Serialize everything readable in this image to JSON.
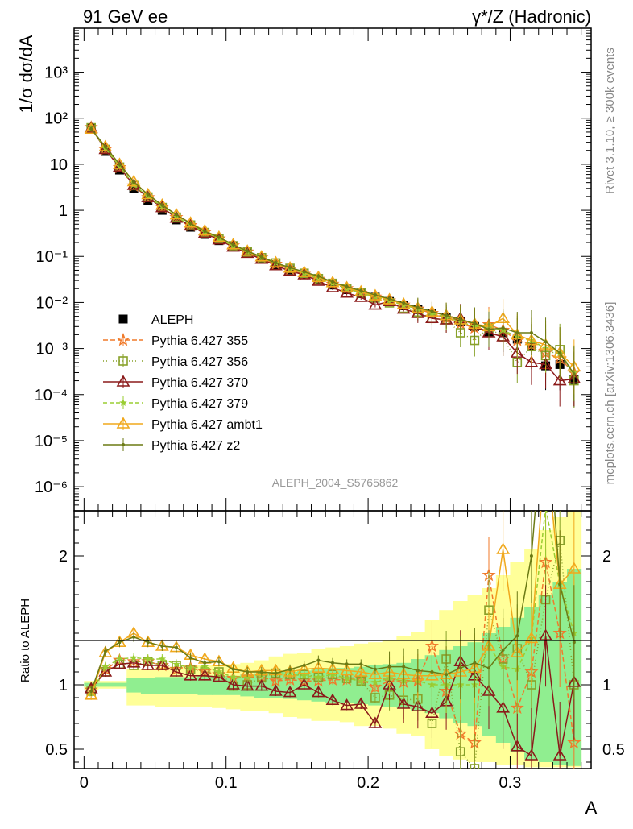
{
  "header": {
    "left": "91 GeV ee",
    "right": "γ*/Z (Hadronic)"
  },
  "side_labels": {
    "rivet": "Rivet 3.1.10, ≥ 300k events",
    "mcplots": "mcplots.cern.ch [arXiv:1306.3436]"
  },
  "watermark": "ALEPH_2004_S5765862",
  "colors": {
    "aleph": "#000000",
    "p355": "#f07a2a",
    "p356": "#88a12a",
    "p370": "#8b1a1a",
    "p379": "#9acd32",
    "ambt1": "#f0a81c",
    "z2": "#6b7a14",
    "band_yellow": "#ffff99",
    "band_green": "#90ee90"
  },
  "chart_data": [
    {
      "type": "scatter",
      "panel": "main",
      "ylabel": "1/σ  dσ/dA",
      "yscale": "log",
      "ylim": [
        3e-07,
        9000
      ],
      "xlim": [
        -0.007,
        0.357
      ],
      "ytick_labels": [
        "10³",
        "10²",
        "10",
        "1",
        "10⁻¹",
        "10⁻²",
        "10⁻³",
        "10⁻⁴",
        "10⁻⁵",
        "10⁻⁶"
      ],
      "ytick_values": [
        1000,
        100,
        10,
        1,
        0.1,
        0.01,
        0.001,
        0.0001,
        1e-05,
        1e-06
      ],
      "legend_position": "left",
      "x": [
        0.005,
        0.015,
        0.025,
        0.035,
        0.045,
        0.055,
        0.065,
        0.075,
        0.085,
        0.095,
        0.105,
        0.115,
        0.125,
        0.135,
        0.145,
        0.155,
        0.165,
        0.175,
        0.185,
        0.195,
        0.205,
        0.215,
        0.225,
        0.235,
        0.245,
        0.255,
        0.265,
        0.275,
        0.285,
        0.295,
        0.305,
        0.315,
        0.325,
        0.335,
        0.345
      ],
      "series": [
        {
          "name": "ALEPH",
          "key": "aleph",
          "marker": "square-filled",
          "values": [
            62,
            19,
            7.5,
            3.0,
            1.65,
            1.0,
            0.62,
            0.43,
            0.3,
            0.22,
            0.16,
            0.118,
            0.088,
            0.066,
            0.051,
            0.04,
            0.031,
            0.024,
            0.019,
            0.0155,
            0.013,
            0.0105,
            0.0085,
            0.007,
            0.0058,
            0.0048,
            0.0038,
            0.003,
            0.0023,
            0.0022,
            0.0016,
            0.0011,
            0.00042,
            0.00045,
            0.00021
          ]
        },
        {
          "name": "Pythia 6.427 355",
          "key": "p355",
          "marker": "star-open",
          "dash": "6,3",
          "values": [
            63,
            21,
            8.5,
            3.4,
            1.9,
            1.15,
            0.7,
            0.47,
            0.33,
            0.24,
            0.17,
            0.125,
            0.093,
            0.068,
            0.053,
            0.041,
            0.032,
            0.025,
            0.02,
            0.016,
            0.0132,
            0.0108,
            0.0088,
            0.0072,
            0.0058,
            0.0045,
            0.0035,
            0.0028,
            0.0033,
            0.0025,
            0.0015,
            0.0012,
            0.0008,
            0.0006,
            0.0003
          ]
        },
        {
          "name": "Pythia 6.427 356",
          "key": "p356",
          "marker": "square-open",
          "dash": "1,3",
          "values": [
            62,
            21,
            8.7,
            3.45,
            1.95,
            1.15,
            0.71,
            0.48,
            0.33,
            0.24,
            0.17,
            0.125,
            0.094,
            0.072,
            0.055,
            0.043,
            0.033,
            0.026,
            0.02,
            0.016,
            0.0125,
            0.0098,
            0.0075,
            0.0062,
            0.0045,
            0.0042,
            0.0022,
            0.0015,
            0.0028,
            0.0018,
            0.0005,
            0.0011,
            0.0007,
            0.00095,
            0.0002
          ]
        },
        {
          "name": "Pythia 6.427 370",
          "key": "p370",
          "marker": "triangle-open",
          "values": [
            61,
            21,
            8.7,
            3.5,
            1.9,
            1.15,
            0.68,
            0.46,
            0.32,
            0.23,
            0.16,
            0.117,
            0.087,
            0.063,
            0.048,
            0.04,
            0.029,
            0.021,
            0.016,
            0.013,
            0.0088,
            0.0105,
            0.0072,
            0.0058,
            0.0045,
            0.0042,
            0.0045,
            0.0032,
            0.0022,
            0.0018,
            0.0008,
            0.0005,
            0.00045,
            0.0002,
            0.00022
          ]
        },
        {
          "name": "Pythia 6.427 379",
          "key": "p379",
          "marker": "star-filled",
          "dash": "5,3",
          "values": [
            60,
            22,
            9.0,
            3.6,
            2.0,
            1.2,
            0.72,
            0.48,
            0.34,
            0.24,
            0.17,
            0.125,
            0.094,
            0.072,
            0.055,
            0.043,
            0.033,
            0.026,
            0.02,
            0.016,
            0.0133,
            0.011,
            0.0088,
            0.0072,
            0.0058,
            0.0048,
            0.0038,
            0.003,
            0.003,
            0.0025,
            0.0018,
            0.0015,
            0.001,
            0.0008,
            0.0003
          ]
        },
        {
          "name": "Pythia 6.427 ambt1",
          "key": "ambt1",
          "marker": "triangle-open",
          "values": [
            58,
            24,
            10.0,
            4.2,
            2.2,
            1.3,
            0.8,
            0.53,
            0.36,
            0.26,
            0.18,
            0.13,
            0.098,
            0.073,
            0.056,
            0.045,
            0.035,
            0.027,
            0.021,
            0.017,
            0.014,
            0.0115,
            0.0092,
            0.0075,
            0.0062,
            0.0052,
            0.0042,
            0.0034,
            0.003,
            0.0045,
            0.002,
            0.0015,
            0.0012,
            0.0008,
            0.0004
          ]
        },
        {
          "name": "Pythia 6.427 z2",
          "key": "z2",
          "marker": "dot",
          "values": [
            59,
            24,
            10.0,
            4.1,
            2.2,
            1.3,
            0.8,
            0.52,
            0.35,
            0.26,
            0.18,
            0.13,
            0.097,
            0.072,
            0.057,
            0.046,
            0.037,
            0.028,
            0.022,
            0.018,
            0.0145,
            0.012,
            0.0097,
            0.0078,
            0.0064,
            0.0052,
            0.0043,
            0.0035,
            0.0026,
            0.0028,
            0.0022,
            0.0022,
            0.0014,
            0.0008,
            0.00028
          ]
        }
      ]
    },
    {
      "type": "line",
      "panel": "ratio",
      "ylabel": "Ratio to ALEPH",
      "xlabel": "A",
      "ylim": [
        0.35,
        2.35
      ],
      "xlim": [
        -0.007,
        0.357
      ],
      "xtick_labels": [
        "0",
        "0.1",
        "0.2",
        "0.3"
      ],
      "xtick_values": [
        0,
        0.1,
        0.2,
        0.3
      ],
      "ytick_labels": [
        "0.5",
        "1",
        "2"
      ],
      "ytick_values": [
        0.5,
        1,
        2
      ],
      "x": [
        0.005,
        0.015,
        0.025,
        0.035,
        0.045,
        0.055,
        0.065,
        0.075,
        0.085,
        0.095,
        0.105,
        0.115,
        0.125,
        0.135,
        0.145,
        0.155,
        0.165,
        0.175,
        0.185,
        0.195,
        0.205,
        0.215,
        0.225,
        0.235,
        0.245,
        0.255,
        0.265,
        0.275,
        0.285,
        0.295,
        0.305,
        0.315,
        0.325,
        0.335,
        0.345
      ],
      "band_yellow": {
        "lo": [
          0.96,
          0.97,
          0.97,
          0.84,
          0.84,
          0.83,
          0.83,
          0.83,
          0.83,
          0.82,
          0.81,
          0.8,
          0.8,
          0.78,
          0.75,
          0.74,
          0.72,
          0.72,
          0.71,
          0.68,
          0.68,
          0.66,
          0.62,
          0.6,
          0.5,
          0.45,
          0.42,
          0.4,
          0.4,
          0.38,
          0.38,
          0.36,
          0.36,
          0.36,
          0.36
        ],
        "hi": [
          1.03,
          1.03,
          1.03,
          1.12,
          1.12,
          1.14,
          1.14,
          1.15,
          1.15,
          1.15,
          1.16,
          1.17,
          1.19,
          1.22,
          1.24,
          1.25,
          1.28,
          1.29,
          1.3,
          1.32,
          1.33,
          1.35,
          1.38,
          1.41,
          1.5,
          1.58,
          1.65,
          1.7,
          1.75,
          1.85,
          1.95,
          2.05,
          2.2,
          2.3,
          2.35
        ]
      },
      "band_green": {
        "lo": [
          0.985,
          0.985,
          0.985,
          0.94,
          0.93,
          0.93,
          0.93,
          0.93,
          0.92,
          0.92,
          0.92,
          0.91,
          0.9,
          0.9,
          0.89,
          0.88,
          0.87,
          0.86,
          0.86,
          0.85,
          0.84,
          0.83,
          0.82,
          0.8,
          0.78,
          0.74,
          0.7,
          0.68,
          0.6,
          0.55,
          0.48,
          0.42,
          0.4,
          0.38,
          0.37
        ],
        "hi": [
          1.015,
          1.015,
          1.015,
          1.05,
          1.05,
          1.06,
          1.06,
          1.06,
          1.07,
          1.07,
          1.07,
          1.08,
          1.09,
          1.1,
          1.1,
          1.11,
          1.12,
          1.13,
          1.13,
          1.14,
          1.15,
          1.16,
          1.17,
          1.2,
          1.23,
          1.27,
          1.3,
          1.33,
          1.4,
          1.45,
          1.52,
          1.6,
          1.7,
          1.8,
          1.9
        ]
      },
      "series": [
        {
          "name": "Pythia 6.427 355",
          "key": "p355",
          "marker": "star-open",
          "dash": "6,3",
          "values": [
            0.96,
            1.12,
            1.19,
            1.18,
            1.18,
            1.15,
            1.12,
            1.13,
            1.1,
            1.08,
            1.05,
            1.06,
            1.06,
            1.03,
            1.04,
            1.03,
            1.03,
            1.04,
            1.04,
            1.05,
            0.98,
            1.03,
            1.02,
            1.03,
            1.3,
            0.95,
            0.62,
            0.55,
            1.85,
            1.2,
            0.82,
            1.1,
            1.95,
            1.4,
            0.55
          ]
        },
        {
          "name": "Pythia 6.427 356",
          "key": "p356",
          "marker": "square-open",
          "dash": "1,3",
          "values": [
            0.95,
            1.1,
            1.16,
            1.15,
            1.18,
            1.15,
            1.15,
            1.12,
            1.1,
            1.1,
            0.99,
            1.0,
            1.06,
            1.09,
            1.08,
            1.08,
            1.06,
            1.08,
            1.05,
            1.03,
            0.9,
            0.92,
            0.88,
            0.89,
            0.7,
            1.2,
            0.48,
            0.35,
            1.58,
            1.2,
            1.28,
            1.0,
            1.66,
            2.12,
            1.0
          ]
        },
        {
          "name": "Pythia 6.427 370",
          "key": "p370",
          "marker": "triangle-open",
          "values": [
            0.97,
            1.1,
            1.16,
            1.17,
            1.15,
            1.15,
            1.1,
            1.07,
            1.07,
            1.06,
            1.0,
            0.99,
            0.99,
            0.95,
            0.94,
            1.0,
            0.94,
            0.88,
            0.84,
            0.85,
            0.7,
            1.0,
            0.85,
            0.83,
            0.78,
            0.87,
            1.18,
            1.07,
            0.95,
            0.82,
            0.52,
            0.45,
            1.38,
            0.45,
            1.02
          ]
        },
        {
          "name": "Pythia 6.427 379",
          "key": "p379",
          "marker": "star-filled",
          "dash": "5,3",
          "values": [
            0.93,
            1.14,
            1.2,
            1.21,
            1.2,
            1.2,
            1.16,
            1.13,
            1.14,
            1.1,
            1.06,
            1.06,
            1.08,
            1.09,
            1.08,
            1.07,
            1.06,
            1.08,
            1.05,
            1.03,
            1.02,
            1.05,
            1.03,
            1.03,
            1.0,
            1.0,
            1.0,
            1.0,
            1.3,
            1.14,
            1.12,
            1.36,
            2.38,
            1.78,
            1.4
          ]
        },
        {
          "name": "Pythia 6.427 ambt1",
          "key": "ambt1",
          "marker": "triangle-open",
          "values": [
            0.92,
            1.25,
            1.33,
            1.4,
            1.33,
            1.3,
            1.29,
            1.23,
            1.2,
            1.18,
            1.13,
            1.1,
            1.11,
            1.11,
            1.1,
            1.12,
            1.13,
            1.12,
            1.11,
            1.1,
            1.08,
            1.1,
            1.08,
            1.07,
            1.07,
            1.08,
            1.1,
            1.13,
            1.3,
            2.05,
            1.25,
            1.36,
            2.85,
            1.78,
            1.9
          ]
        },
        {
          "name": "Pythia 6.427 z2",
          "key": "z2",
          "marker": "dot",
          "values": [
            0.95,
            1.26,
            1.33,
            1.37,
            1.33,
            1.3,
            1.29,
            1.21,
            1.17,
            1.18,
            1.12,
            1.1,
            1.1,
            1.09,
            1.12,
            1.15,
            1.19,
            1.17,
            1.16,
            1.16,
            1.12,
            1.14,
            1.14,
            1.11,
            1.1,
            1.08,
            1.13,
            1.17,
            1.13,
            1.27,
            1.38,
            2.0,
            3.33,
            1.78,
            1.33
          ]
        }
      ]
    }
  ]
}
